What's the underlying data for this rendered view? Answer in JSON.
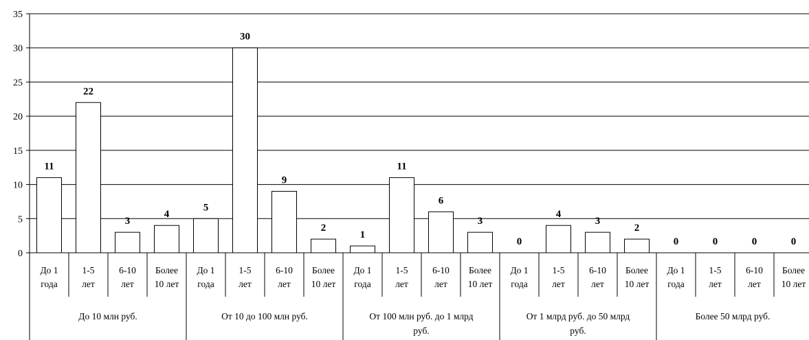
{
  "chart_data": {
    "type": "bar",
    "title": "",
    "xlabel": "",
    "ylabel": "",
    "ylim": [
      0,
      35
    ],
    "yticks": [
      0,
      5,
      10,
      15,
      20,
      25,
      30,
      35
    ],
    "grid": true,
    "legend": "none",
    "groups": [
      {
        "label": "До 10 млн руб.",
        "categories": [
          {
            "line1": "До 1",
            "line2": "года",
            "value": 11
          },
          {
            "line1": "1-5",
            "line2": "лет",
            "value": 22
          },
          {
            "line1": "6-10",
            "line2": "лет",
            "value": 3
          },
          {
            "line1": "Более",
            "line2": "10 лет",
            "value": 4
          }
        ]
      },
      {
        "label": "От 10 до 100 млн руб.",
        "categories": [
          {
            "line1": "До 1",
            "line2": "года",
            "value": 5
          },
          {
            "line1": "1-5",
            "line2": "лет",
            "value": 30
          },
          {
            "line1": "6-10",
            "line2": "лет",
            "value": 9
          },
          {
            "line1": "Более",
            "line2": "10 лет",
            "value": 2
          }
        ]
      },
      {
        "label": "От 100 млн руб. до 1 млрд",
        "label2": "руб.",
        "categories": [
          {
            "line1": "До 1",
            "line2": "года",
            "value": 1
          },
          {
            "line1": "1-5",
            "line2": "лет",
            "value": 11
          },
          {
            "line1": "6-10",
            "line2": "лет",
            "value": 6
          },
          {
            "line1": "Более",
            "line2": "10 лет",
            "value": 3
          }
        ]
      },
      {
        "label": "От 1 млрд руб. до 50 млрд",
        "label2": "руб.",
        "categories": [
          {
            "line1": "До 1",
            "line2": "года",
            "value": 0
          },
          {
            "line1": "1-5",
            "line2": "лет",
            "value": 4
          },
          {
            "line1": "6-10",
            "line2": "лет",
            "value": 3
          },
          {
            "line1": "Более",
            "line2": "10 лет",
            "value": 2
          }
        ]
      },
      {
        "label": "Более 50 млрд руб.",
        "categories": [
          {
            "line1": "До 1",
            "line2": "года",
            "value": 0
          },
          {
            "line1": "1-5",
            "line2": "лет",
            "value": 0
          },
          {
            "line1": "6-10",
            "line2": "лет",
            "value": 0
          },
          {
            "line1": "Более",
            "line2": "10 лет",
            "value": 0
          }
        ]
      }
    ]
  }
}
